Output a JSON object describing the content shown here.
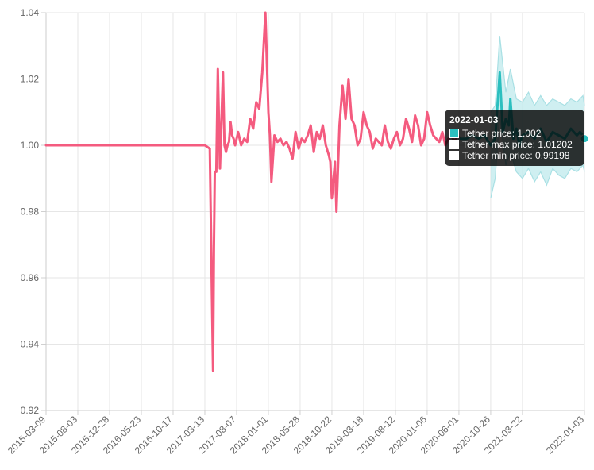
{
  "chart_data": {
    "type": "line",
    "ylim": [
      0.92,
      1.04
    ],
    "y_ticks": [
      "1.04",
      "1.02",
      "1.00",
      "0.98",
      "0.96",
      "0.94",
      "0.92"
    ],
    "x_tick_labels": [
      "2015-03-09",
      "2015-08-03",
      "2015-12-28",
      "2016-05-23",
      "2016-10-17",
      "2017-03-13",
      "2017-08-07",
      "2018-01-01",
      "2018-05-28",
      "2018-10-22",
      "2019-03-18",
      "2019-08-12",
      "2020-01-06",
      "2020-06-01",
      "2020-10-26",
      "2021-03-22",
      "2022-01-03"
    ],
    "grid": true,
    "colors": {
      "price_history": "#f45b7f",
      "price_forecast": "#2bbfbf",
      "band": "#bfe9ec"
    },
    "series": [
      {
        "name": "Tether price",
        "role": "history",
        "x": [
          "2015-03-09",
          "2017-03-13",
          "2017-04-05",
          "2017-04-20",
          "2017-04-24",
          "2017-04-28",
          "2017-05-05",
          "2017-05-12",
          "2017-05-22",
          "2017-06-05",
          "2017-06-12",
          "2017-06-19",
          "2017-06-26",
          "2017-07-03",
          "2017-07-10",
          "2017-07-17",
          "2017-07-24",
          "2017-07-31",
          "2017-08-14",
          "2017-08-28",
          "2017-09-11",
          "2017-09-25",
          "2017-10-09",
          "2017-10-23",
          "2017-11-06",
          "2017-11-20",
          "2017-12-04",
          "2017-12-18",
          "2018-01-01",
          "2018-01-08",
          "2018-01-15",
          "2018-01-29",
          "2018-02-12",
          "2018-02-26",
          "2018-03-12",
          "2018-03-26",
          "2018-04-09",
          "2018-04-23",
          "2018-05-07",
          "2018-05-21",
          "2018-06-04",
          "2018-06-18",
          "2018-07-02",
          "2018-07-16",
          "2018-07-30",
          "2018-08-13",
          "2018-08-27",
          "2018-09-10",
          "2018-09-24",
          "2018-10-08",
          "2018-10-15",
          "2018-10-22",
          "2018-11-05",
          "2018-11-12",
          "2018-11-26",
          "2018-12-10",
          "2018-12-24",
          "2019-01-07",
          "2019-01-21",
          "2019-02-04",
          "2019-02-18",
          "2019-03-04",
          "2019-03-18",
          "2019-04-01",
          "2019-04-15",
          "2019-04-29",
          "2019-05-13",
          "2019-05-27",
          "2019-06-10",
          "2019-06-24",
          "2019-07-08",
          "2019-07-22",
          "2019-08-05",
          "2019-08-19",
          "2019-09-02",
          "2019-09-16",
          "2019-09-30",
          "2019-10-14",
          "2019-10-28",
          "2019-11-11",
          "2019-11-25",
          "2019-12-09",
          "2019-12-23",
          "2020-01-06",
          "2020-01-20",
          "2020-02-03",
          "2020-02-17",
          "2020-03-02",
          "2020-03-16",
          "2020-03-30",
          "2020-04-13",
          "2020-04-27",
          "2020-05-11",
          "2020-05-25",
          "2020-06-08"
        ],
        "values": [
          1.0,
          1.0,
          0.999,
          0.932,
          0.969,
          0.992,
          0.992,
          1.023,
          0.993,
          1.022,
          1.0,
          0.998,
          1.0,
          1.001,
          1.007,
          1.003,
          1.002,
          1.0,
          1.004,
          1.0,
          1.002,
          1.001,
          1.008,
          1.005,
          1.013,
          1.011,
          1.022,
          1.04,
          1.01,
          1.003,
          0.989,
          1.003,
          1.001,
          1.002,
          1.0,
          1.001,
          0.999,
          0.996,
          1.004,
          0.999,
          1.002,
          1.001,
          1.003,
          1.006,
          0.998,
          1.004,
          1.002,
          1.006,
          1.0,
          0.997,
          0.995,
          0.984,
          0.995,
          0.98,
          1.006,
          1.018,
          1.008,
          1.02,
          1.008,
          1.006,
          1.0,
          1.002,
          1.01,
          1.006,
          1.004,
          0.999,
          1.002,
          1.001,
          1.0,
          1.006,
          1.001,
          0.999,
          1.002,
          1.004,
          1.0,
          1.002,
          1.008,
          1.005,
          1.001,
          1.009,
          1.006,
          1.0,
          1.002,
          1.01,
          1.006,
          1.003,
          1.002,
          1.001,
          1.004,
          1.0,
          1.002,
          1.003,
          1.001,
          1.003,
          1.002
        ]
      },
      {
        "name": "Tether price",
        "role": "forecast",
        "x": [
          "2020-06-08",
          "2020-07-06",
          "2020-08-03",
          "2020-08-31",
          "2020-09-28",
          "2020-10-26",
          "2020-11-16",
          "2020-12-07",
          "2020-12-21",
          "2021-01-04",
          "2021-01-18",
          "2021-01-25",
          "2021-02-08",
          "2021-02-22",
          "2021-03-08",
          "2021-03-22",
          "2021-04-19",
          "2021-05-17",
          "2021-06-14",
          "2021-07-12",
          "2021-08-09",
          "2021-09-06",
          "2021-10-04",
          "2021-11-01",
          "2021-11-29",
          "2021-12-13",
          "2021-12-27",
          "2022-01-03"
        ],
        "values": [
          1.002,
          1.002,
          1.003,
          1.002,
          1.003,
          1.0,
          1.002,
          1.022,
          1.004,
          1.008,
          1.006,
          1.014,
          1.002,
          1.005,
          1.0,
          1.003,
          1.004,
          1.002,
          1.005,
          1.001,
          1.004,
          1.003,
          1.002,
          1.005,
          1.003,
          1.004,
          1.003,
          1.002
        ]
      },
      {
        "name": "Tether max price",
        "x": [
          "2020-10-26",
          "2020-11-16",
          "2020-12-07",
          "2021-01-04",
          "2021-01-25",
          "2021-02-22",
          "2021-03-22",
          "2021-04-19",
          "2021-05-17",
          "2021-06-14",
          "2021-07-12",
          "2021-08-09",
          "2021-09-06",
          "2021-10-04",
          "2021-11-01",
          "2021-11-29",
          "2021-12-27",
          "2022-01-03"
        ],
        "values": [
          1.01,
          1.012,
          1.033,
          1.016,
          1.023,
          1.014,
          1.013,
          1.016,
          1.012,
          1.015,
          1.012,
          1.014,
          1.013,
          1.012,
          1.014,
          1.013,
          1.015,
          1.012
        ]
      },
      {
        "name": "Tether min price",
        "x": [
          "2020-10-26",
          "2020-11-16",
          "2020-12-07",
          "2021-01-04",
          "2021-01-25",
          "2021-02-22",
          "2021-03-22",
          "2021-04-19",
          "2021-05-17",
          "2021-06-14",
          "2021-07-12",
          "2021-08-09",
          "2021-09-06",
          "2021-10-04",
          "2021-11-01",
          "2021-11-29",
          "2021-12-27",
          "2022-01-03"
        ],
        "values": [
          0.984,
          0.99,
          1.009,
          0.994,
          0.998,
          0.992,
          0.99,
          0.993,
          0.989,
          0.992,
          0.988,
          0.993,
          0.991,
          0.99,
          0.993,
          0.992,
          0.994,
          0.992
        ]
      }
    ]
  },
  "tooltip": {
    "title": "2022-01-03",
    "rows": [
      {
        "label": "Tether price: 1.002",
        "color": "#2bbfbf"
      },
      {
        "label": "Tether max price: 1.01202",
        "color": "#ffffff"
      },
      {
        "label": "Tether min price: 0.99198",
        "color": "#ffffff"
      }
    ]
  }
}
